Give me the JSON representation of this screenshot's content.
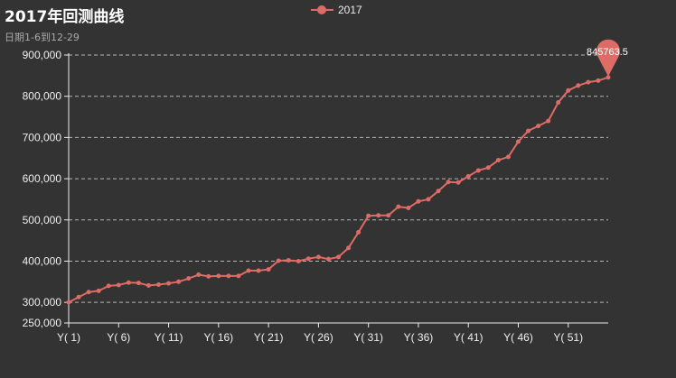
{
  "chart_data": {
    "type": "line",
    "title": "2017年回测曲线",
    "subtitle": "日期1-6到12-29",
    "legend": {
      "entries": [
        "2017"
      ],
      "placement": "top-center"
    },
    "colors": {
      "series": "#dd6b66",
      "background": "#333333",
      "grid": "#cccccc",
      "axis": "#eeeeee"
    },
    "xlabel": "",
    "ylabel": "",
    "ylim": [
      250000,
      900000
    ],
    "y_ticks": [
      "250,000",
      "300,000",
      "400,000",
      "500,000",
      "600,000",
      "700,000",
      "800,000",
      "900,000"
    ],
    "x_tick_labels": [
      "Y( 1)",
      "Y( 6)",
      "Y( 11)",
      "Y( 16)",
      "Y( 21)",
      "Y( 26)",
      "Y( 31)",
      "Y( 36)",
      "Y( 41)",
      "Y( 46)",
      "Y( 51)"
    ],
    "grid": "horizontal-dashed",
    "categories": [
      "Y( 1)",
      "Y( 2)",
      "Y( 3)",
      "Y( 4)",
      "Y( 5)",
      "Y( 6)",
      "Y( 7)",
      "Y( 8)",
      "Y( 9)",
      "Y( 10)",
      "Y( 11)",
      "Y( 12)",
      "Y( 13)",
      "Y( 14)",
      "Y( 15)",
      "Y( 16)",
      "Y( 17)",
      "Y( 18)",
      "Y( 19)",
      "Y( 20)",
      "Y( 21)",
      "Y( 22)",
      "Y( 23)",
      "Y( 24)",
      "Y( 25)",
      "Y( 26)",
      "Y( 27)",
      "Y( 28)",
      "Y( 29)",
      "Y( 30)",
      "Y( 31)",
      "Y( 32)",
      "Y( 33)",
      "Y( 34)",
      "Y( 35)",
      "Y( 36)",
      "Y( 37)",
      "Y( 38)",
      "Y( 39)",
      "Y( 40)",
      "Y( 41)",
      "Y( 42)",
      "Y( 43)",
      "Y( 44)",
      "Y( 45)",
      "Y( 46)",
      "Y( 47)",
      "Y( 48)",
      "Y( 49)",
      "Y( 50)",
      "Y( 51)",
      "Y( 52)",
      "Y( 53)",
      "Y( 54)",
      "Y( 55)"
    ],
    "series": [
      {
        "name": "2017",
        "values": [
          300000,
          313000,
          325000,
          328000,
          340000,
          342000,
          348000,
          347000,
          341000,
          343000,
          346000,
          350000,
          358000,
          367000,
          363000,
          364000,
          364000,
          364000,
          377000,
          377000,
          380000,
          401000,
          402000,
          400000,
          406000,
          410000,
          405000,
          410000,
          432000,
          470000,
          510000,
          511000,
          511000,
          532000,
          529000,
          545000,
          550000,
          570000,
          592000,
          591000,
          606000,
          620000,
          627000,
          645000,
          653000,
          690000,
          716000,
          728000,
          740000,
          785000,
          814000,
          826000,
          834000,
          838000,
          845763.5
        ],
        "max_point": {
          "index": 54,
          "value": 845763.5,
          "label": "845763.5"
        }
      }
    ]
  }
}
